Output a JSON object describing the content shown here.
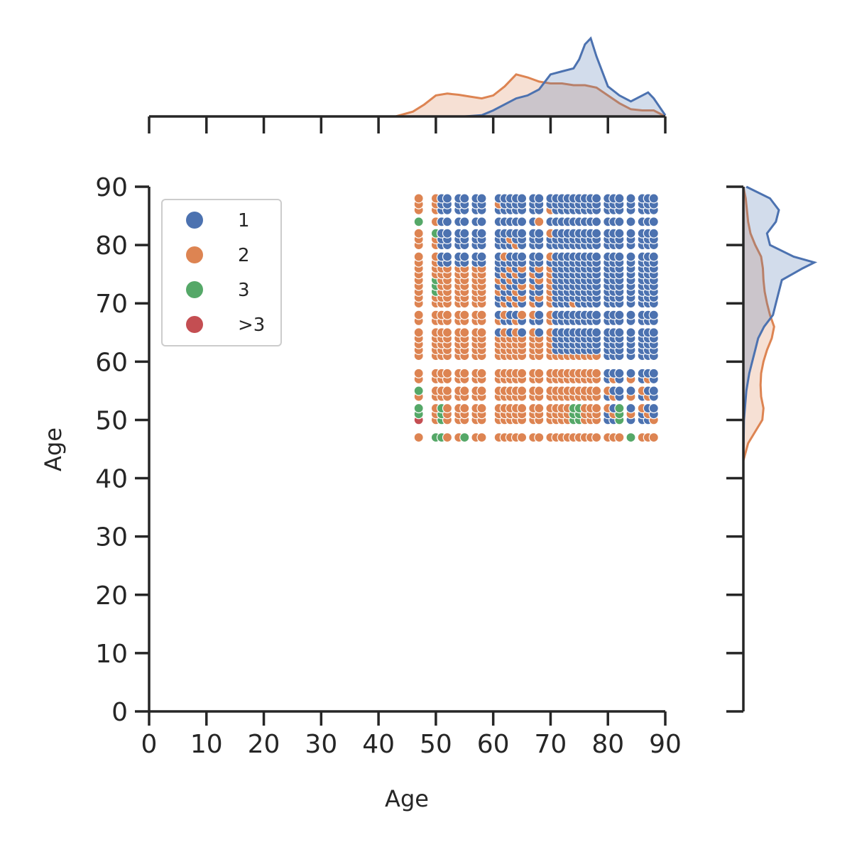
{
  "chart_data": {
    "type": "scatter",
    "xlabel": "Age",
    "ylabel": "Age",
    "xlim": [
      0,
      90
    ],
    "ylim": [
      0,
      90
    ],
    "xticks": [
      "0",
      "10",
      "20",
      "30",
      "40",
      "50",
      "60",
      "70",
      "80",
      "90"
    ],
    "yticks": [
      "0",
      "10",
      "20",
      "30",
      "40",
      "50",
      "60",
      "70",
      "80",
      "90"
    ],
    "legend_position": "top-left",
    "series": [
      {
        "name": "1",
        "color": "#4c72b0"
      },
      {
        "name": "2",
        "color": "#dd8452"
      },
      {
        "name": "3",
        "color": "#55a868"
      },
      {
        "name": ">3",
        "color": "#c44e52"
      }
    ],
    "x_grid_values": [
      47,
      50,
      51,
      52,
      54,
      55,
      57,
      58,
      61,
      62,
      63,
      64,
      65,
      67,
      68,
      70,
      71,
      72,
      73,
      74,
      75,
      76,
      77,
      78,
      80,
      81,
      82,
      84,
      86,
      87,
      88
    ],
    "y_grid_values": [
      47,
      50,
      51,
      52,
      54,
      55,
      57,
      58,
      61,
      62,
      63,
      64,
      65,
      67,
      68,
      70,
      71,
      72,
      73,
      74,
      75,
      76,
      77,
      78,
      80,
      81,
      82,
      84,
      86,
      87,
      88
    ],
    "marginal_x": {
      "type": "kde",
      "series": [
        {
          "name": "1",
          "x": [
            55,
            58,
            60,
            62,
            64,
            66,
            68,
            70,
            72,
            74,
            75,
            76,
            77,
            78,
            80,
            82,
            84,
            86,
            87,
            88,
            90
          ],
          "density": [
            0.0,
            0.002,
            0.01,
            0.02,
            0.03,
            0.035,
            0.045,
            0.07,
            0.075,
            0.08,
            0.095,
            0.12,
            0.13,
            0.1,
            0.05,
            0.035,
            0.025,
            0.035,
            0.04,
            0.03,
            0.002
          ]
        },
        {
          "name": "2",
          "x": [
            43,
            46,
            48,
            50,
            52,
            54,
            56,
            58,
            60,
            62,
            64,
            66,
            68,
            70,
            72,
            74,
            76,
            78,
            80,
            82,
            84,
            86,
            88,
            90
          ],
          "density": [
            0.0,
            0.008,
            0.02,
            0.035,
            0.038,
            0.036,
            0.033,
            0.03,
            0.035,
            0.05,
            0.07,
            0.065,
            0.058,
            0.055,
            0.055,
            0.052,
            0.052,
            0.048,
            0.035,
            0.022,
            0.012,
            0.01,
            0.01,
            0.0
          ]
        }
      ]
    },
    "marginal_y": {
      "type": "kde",
      "series": [
        {
          "name": "1",
          "y": [
            43,
            50,
            55,
            58,
            60,
            62,
            64,
            66,
            68,
            70,
            72,
            74,
            76,
            77,
            78,
            80,
            82,
            84,
            86,
            88,
            90
          ],
          "density": [
            0.0,
            0.001,
            0.005,
            0.01,
            0.015,
            0.02,
            0.025,
            0.035,
            0.05,
            0.055,
            0.06,
            0.065,
            0.1,
            0.12,
            0.085,
            0.045,
            0.04,
            0.055,
            0.06,
            0.045,
            0.005
          ]
        },
        {
          "name": "2",
          "y": [
            43,
            46,
            48,
            50,
            52,
            54,
            56,
            58,
            60,
            62,
            64,
            66,
            68,
            70,
            72,
            74,
            76,
            78,
            80,
            82,
            84,
            86,
            88,
            90
          ],
          "density": [
            0.0,
            0.008,
            0.02,
            0.032,
            0.034,
            0.03,
            0.029,
            0.03,
            0.034,
            0.04,
            0.048,
            0.052,
            0.045,
            0.04,
            0.036,
            0.034,
            0.033,
            0.03,
            0.02,
            0.012,
            0.008,
            0.006,
            0.004,
            0.0
          ]
        }
      ]
    }
  }
}
